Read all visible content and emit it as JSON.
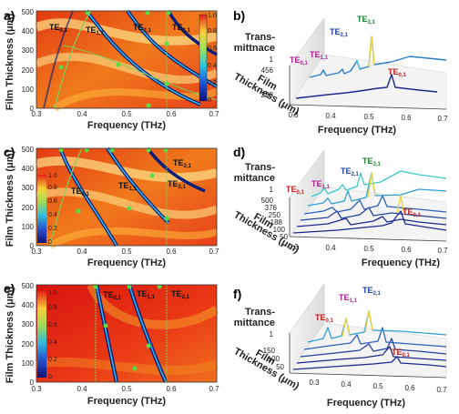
{
  "panels": [
    {
      "label": "a)",
      "type": "map",
      "xlabel": "Frequency (THz)",
      "ylabel": "Film Thickness (μm)",
      "xticks": [
        "0.3",
        "0.4",
        "0.5",
        "0.6",
        "0.7"
      ],
      "yticks": [
        "0",
        "100",
        "200",
        "300",
        "400",
        "500"
      ],
      "cbticks": [
        "0",
        "0.2",
        "0.4",
        "0.6",
        "0.8",
        "1.0"
      ],
      "modes": [
        {
          "name": "TE",
          "sub": "0,1",
          "color": "#111111"
        },
        {
          "name": "TE",
          "sub": "1,1",
          "color": "#111111"
        },
        {
          "name": "TE",
          "sub": "2,1",
          "color": "#111111"
        },
        {
          "name": "TE",
          "sub": "3,1",
          "color": "#111111"
        }
      ]
    },
    {
      "label": "b)",
      "type": "stack",
      "zlabel_1": "Trans-",
      "zlabel_2": "mittnace",
      "ylabel_1": "Film",
      "ylabel_2": "Thickness (μm)",
      "xlabel": "Frequency (THz)",
      "xticks": [
        "0.3",
        "0.4",
        "0.5",
        "0.6",
        "0.7"
      ],
      "yticks": [
        "456",
        "228"
      ],
      "ztick": "1",
      "modes": [
        {
          "name": "TE",
          "sub": "0,1",
          "color": "#a4208a"
        },
        {
          "name": "TE",
          "sub": "1,1",
          "color": "#a4208a"
        },
        {
          "name": "TE",
          "sub": "2,1",
          "color": "#1f3fa0"
        },
        {
          "name": "TE",
          "sub": "3,1",
          "color": "#1b7d2d"
        },
        {
          "name": "TE",
          "sub": "0,1",
          "color": "#b41e1e"
        }
      ]
    },
    {
      "label": "c)",
      "type": "map",
      "xlabel": "Frequency (THz)",
      "ylabel": "Film Thickness (μm)",
      "xticks": [
        "0.3",
        "0.4",
        "0.5",
        "0.6",
        "0.7"
      ],
      "yticks": [
        "0",
        "100",
        "200",
        "300",
        "400",
        "500"
      ],
      "cbticks": [
        "0",
        "0.2",
        "0.4",
        "0.6",
        "0.8",
        "1.0"
      ],
      "modes": [
        {
          "name": "TE",
          "sub": "0,1",
          "color": "#111111"
        },
        {
          "name": "TE",
          "sub": "1,1",
          "color": "#111111"
        },
        {
          "name": "TE",
          "sub": "2,1",
          "color": "#111111"
        },
        {
          "name": "TE",
          "sub": "3,1",
          "color": "#111111"
        }
      ]
    },
    {
      "label": "d)",
      "type": "stack",
      "zlabel_1": "Trans-",
      "zlabel_2": "mittance",
      "ylabel_1": "Film",
      "ylabel_2": "Thickness (μm)",
      "xlabel": "Frequency (THz)",
      "xticks": [
        "0.3",
        "0.4",
        "0.5",
        "0.6",
        "0.7"
      ],
      "yticks": [
        "500",
        "376",
        "250",
        "188",
        "100",
        "50"
      ],
      "ztick": "1",
      "modes": [
        {
          "name": "TE",
          "sub": "0,1",
          "color": "#b41e1e"
        },
        {
          "name": "TE",
          "sub": "1,1",
          "color": "#a4208a"
        },
        {
          "name": "TE",
          "sub": "2,1",
          "color": "#1f3fa0"
        },
        {
          "name": "TE",
          "sub": "3,1",
          "color": "#1b7d2d"
        },
        {
          "name": "TE",
          "sub": "0,1",
          "color": "#b41e1e"
        }
      ]
    },
    {
      "label": "e)",
      "type": "map",
      "xlabel": "Frequency (THz)",
      "ylabel": "Film Thickness (μm)",
      "xticks": [
        "0.3",
        "0.4",
        "0.5",
        "0.6",
        "0.7"
      ],
      "yticks": [
        "0",
        "100",
        "200",
        "300",
        "400",
        "500"
      ],
      "cbticks": [
        "0",
        "0.2",
        "0.4",
        "0.6",
        "0.8",
        "1.0"
      ],
      "modes": [
        {
          "name": "TE",
          "sub": "0,1",
          "color": "#111111"
        },
        {
          "name": "TE",
          "sub": "1,1",
          "color": "#111111"
        },
        {
          "name": "TE",
          "sub": "2,1",
          "color": "#111111"
        }
      ]
    },
    {
      "label": "f)",
      "type": "stack",
      "zlabel_1": "Trans-",
      "zlabel_2": "mittance",
      "ylabel_1": "Film",
      "ylabel_2": "Thickness (μm)",
      "xlabel": "Frequency (THz)",
      "xticks": [
        "0.3",
        "0.4",
        "0.5",
        "0.6",
        "0.7"
      ],
      "yticks": [
        "150",
        "100",
        "50"
      ],
      "ztick": "1",
      "modes": [
        {
          "name": "TE",
          "sub": "0,1",
          "color": "#b41e1e"
        },
        {
          "name": "TE",
          "sub": "1,1",
          "color": "#a4208a"
        },
        {
          "name": "TE",
          "sub": "2,1",
          "color": "#1f3fa0"
        },
        {
          "name": "TE",
          "sub": "0,1",
          "color": "#b41e1e"
        }
      ]
    }
  ],
  "colors": {
    "map_hot": "#d21a10",
    "map_warm": "#f39a1a",
    "map_light": "#fde89a",
    "dip": "#0b1f7a",
    "curve": "#7fcf5a",
    "dot": "#5adc4a"
  }
}
